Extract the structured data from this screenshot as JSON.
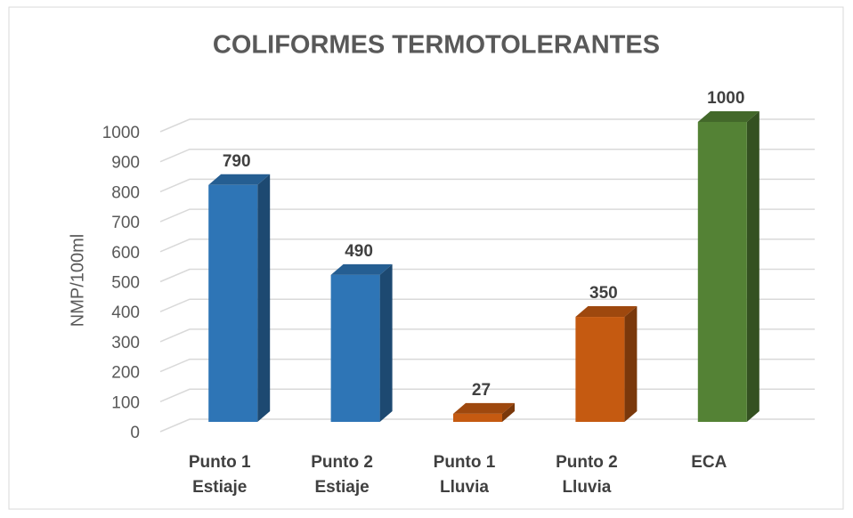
{
  "chart_data": {
    "type": "bar3d",
    "title": "COLIFORMES TERMOTOLERANTES",
    "y_label": "NMP/100ml",
    "categories": [
      [
        "Punto 1",
        "Estiaje"
      ],
      [
        "Punto 2",
        "Estiaje"
      ],
      [
        "Punto 1",
        "Lluvia"
      ],
      [
        "Punto 2",
        "Lluvia"
      ],
      [
        "ECA"
      ]
    ],
    "values": [
      790,
      490,
      27,
      350,
      1000
    ],
    "colors": [
      "#2e75b6",
      "#2e75b6",
      "#c55a11",
      "#c55a11",
      "#548235"
    ],
    "ylim": [
      0,
      1000
    ],
    "yticks": [
      0,
      100,
      200,
      300,
      400,
      500,
      600,
      700,
      800,
      900,
      1000
    ],
    "grid": true
  }
}
